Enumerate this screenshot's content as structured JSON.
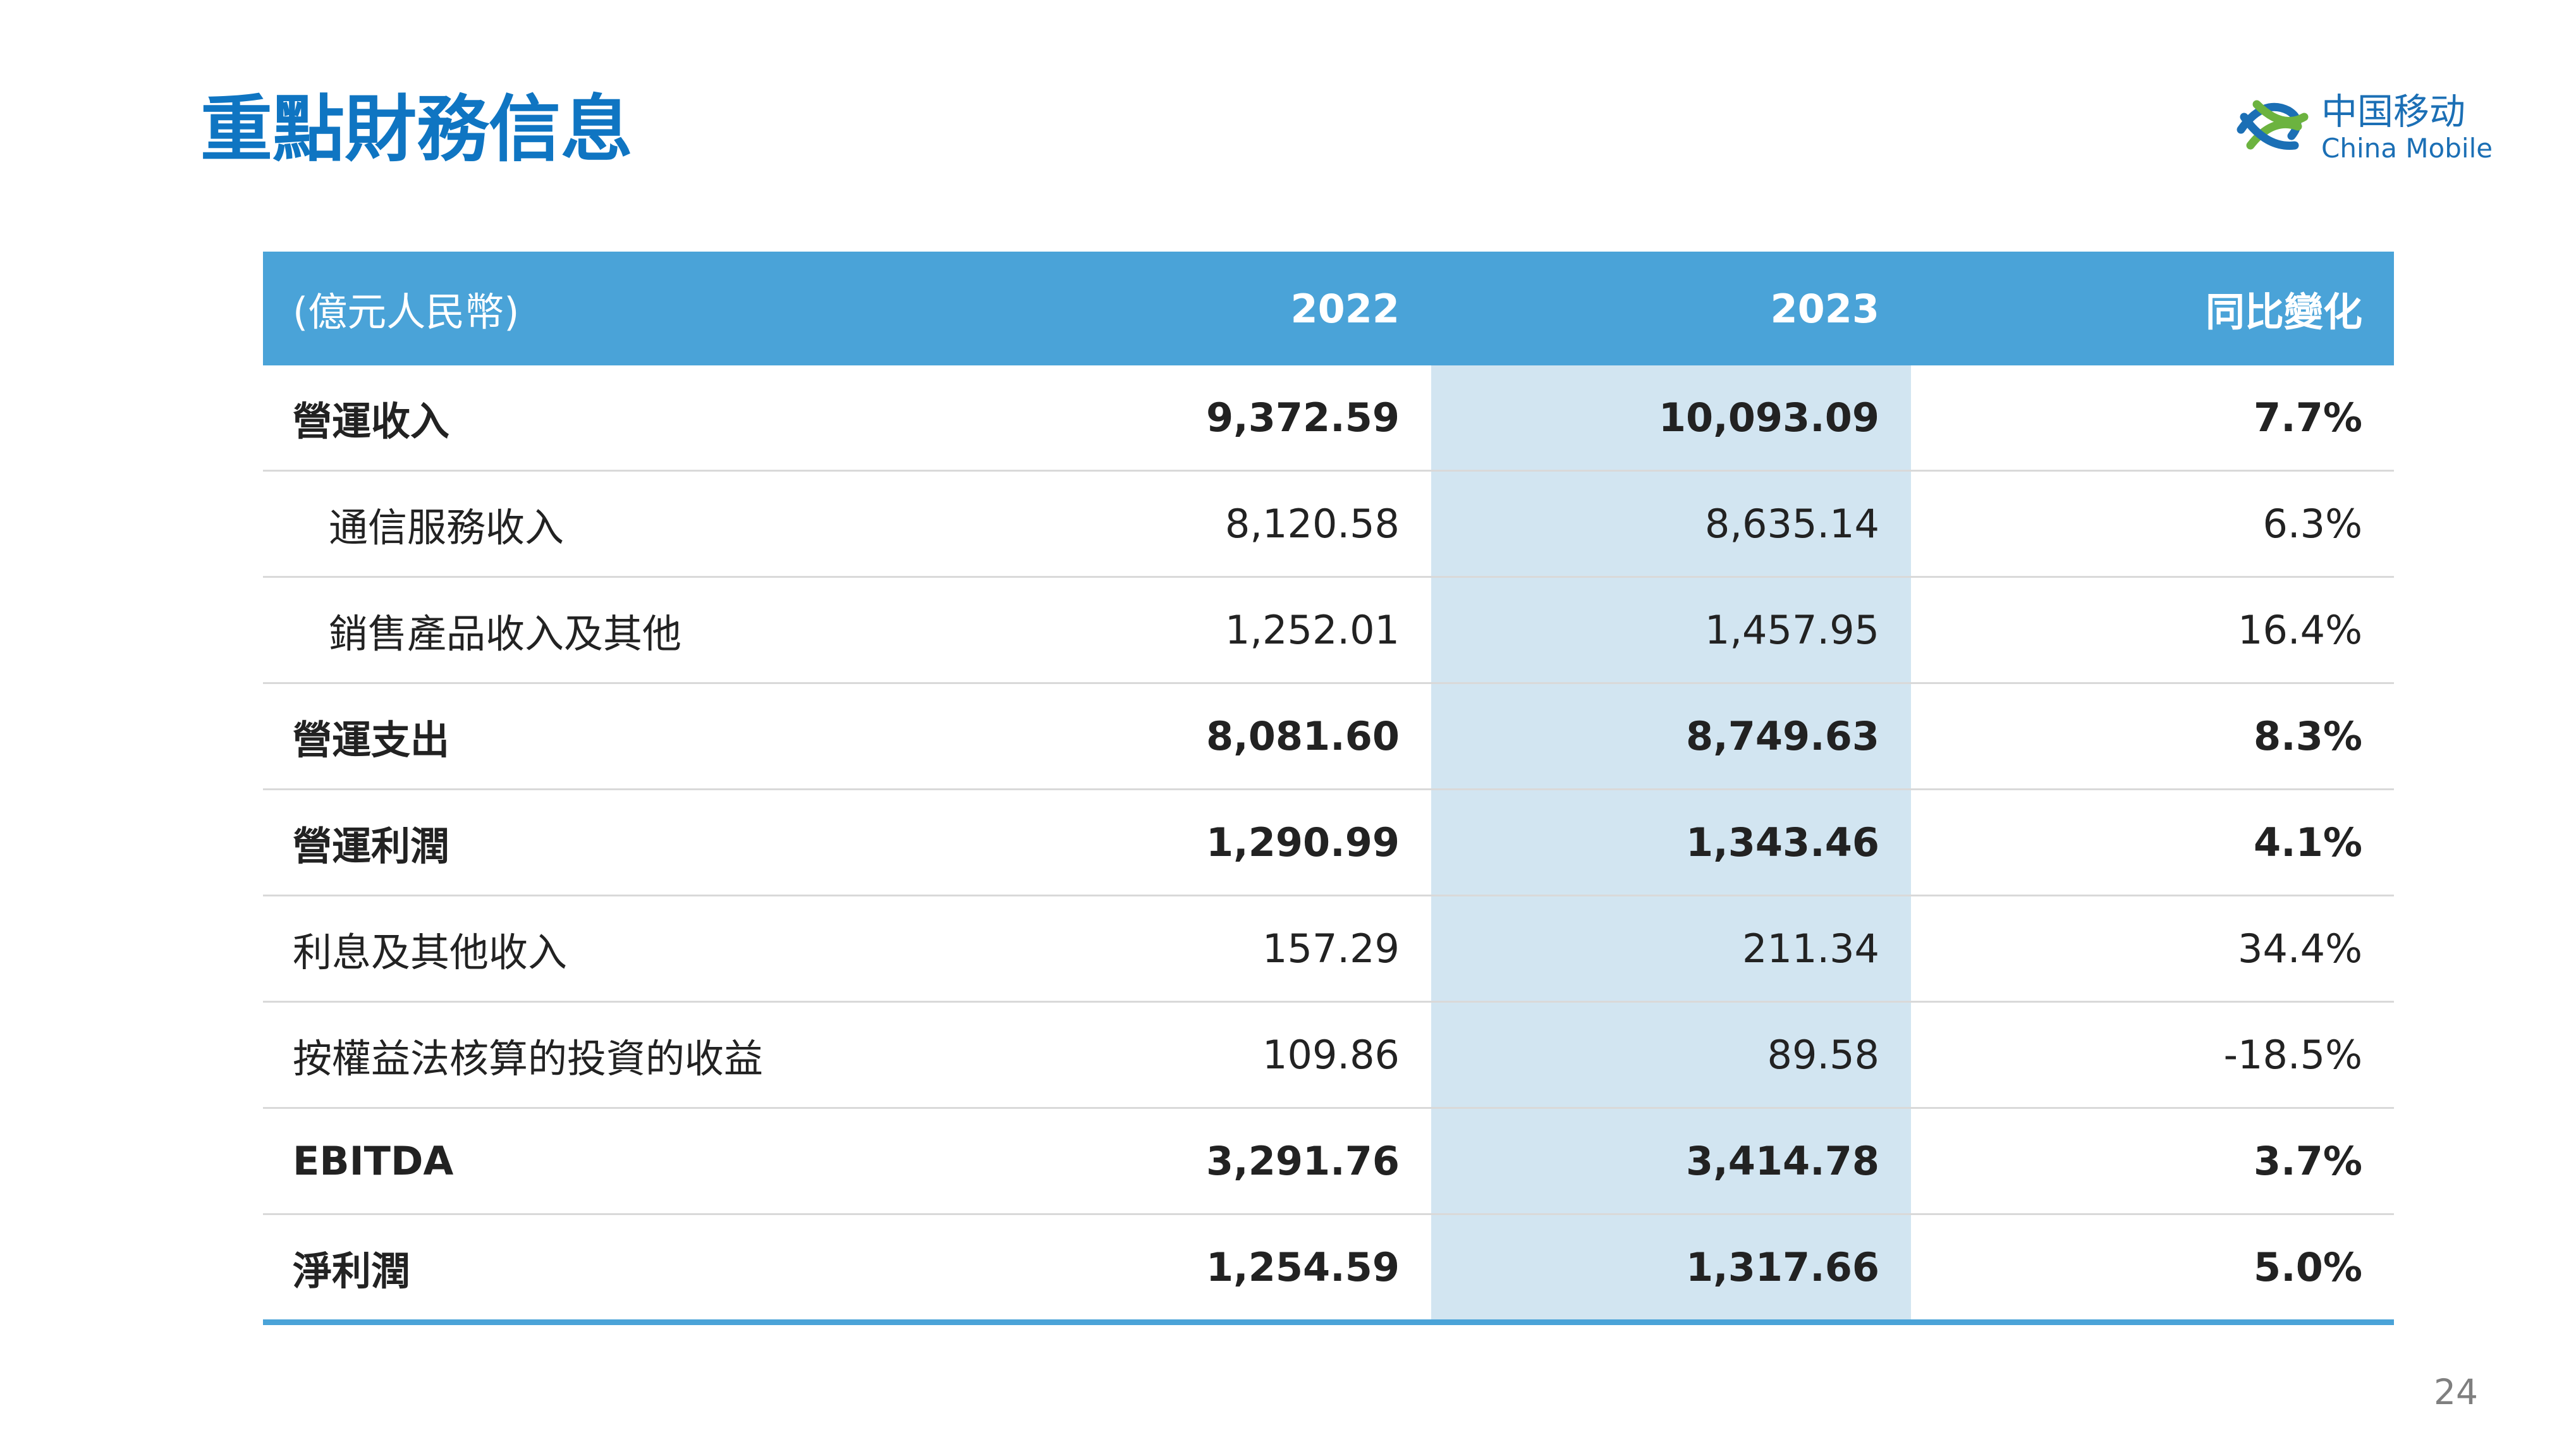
{
  "header": {
    "title": "重點財務信息",
    "logo_cn": "中国移动",
    "logo_en": "China Mobile"
  },
  "table": {
    "columns": [
      "(億元人民幣)",
      "2022",
      "2023",
      "同比變化"
    ],
    "rows": [
      [
        "營運收入",
        "9,372.59",
        "10,093.09",
        "7.7%"
      ],
      [
        "通信服務收入",
        "8,120.58",
        "8,635.14",
        "6.3%"
      ],
      [
        "銷售產品收入及其他",
        "1,252.01",
        "1,457.95",
        "16.4%"
      ],
      [
        "營運支出",
        "8,081.60",
        "8,749.63",
        "8.3%"
      ],
      [
        "營運利潤",
        "1,290.99",
        "1,343.46",
        "4.1%"
      ],
      [
        "利息及其他收入",
        "157.29",
        "211.34",
        "34.4%"
      ],
      [
        "按權益法核算的投資的收益",
        "109.86",
        "89.58",
        "-18.5%"
      ],
      [
        "EBITDA",
        "3,291.76",
        "3,414.78",
        "3.7%"
      ],
      [
        "淨利潤",
        "1,254.59",
        "1,317.66",
        "5.0%"
      ]
    ]
  },
  "page_number": "24"
}
